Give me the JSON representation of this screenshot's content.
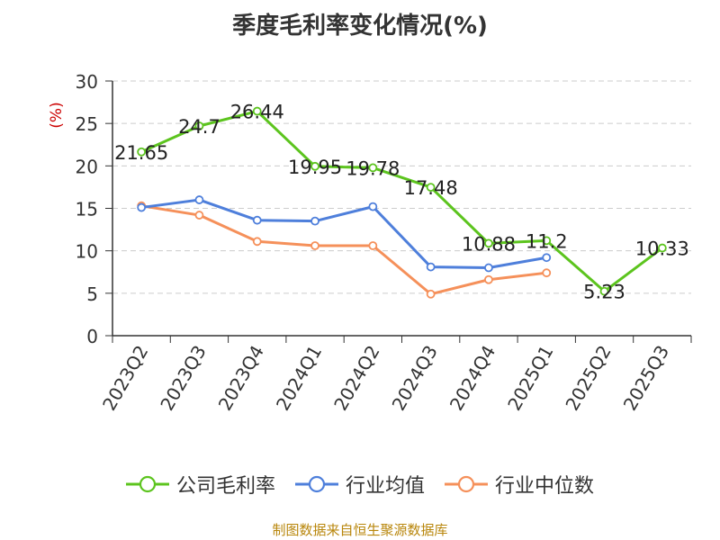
{
  "chart_data": {
    "type": "line",
    "title": "季度毛利率变化情况(%)",
    "ylabel": "(%)",
    "xlabel": "",
    "categories": [
      "2023Q2",
      "2023Q3",
      "2023Q4",
      "2024Q1",
      "2024Q2",
      "2024Q3",
      "2024Q4",
      "2025Q1",
      "2025Q2",
      "2025Q3"
    ],
    "ylim": [
      0,
      30
    ],
    "yticks": [
      0,
      5,
      10,
      15,
      20,
      25,
      30
    ],
    "grid": true,
    "legend_position": "bottom",
    "series": [
      {
        "name": "公司毛利率",
        "color": "#5cc41e",
        "values": [
          21.65,
          24.7,
          26.44,
          19.95,
          19.78,
          17.48,
          10.88,
          11.2,
          5.23,
          10.33
        ],
        "labels": [
          "21.65",
          "24.7",
          "26.44",
          "19.95",
          "19.78",
          "17.48",
          "10.88",
          "11.2",
          "5.23",
          "10.33"
        ]
      },
      {
        "name": "行业均值",
        "color": "#4e7fdb",
        "values": [
          15.1,
          16.0,
          13.6,
          13.5,
          15.2,
          8.1,
          8.0,
          9.2,
          null,
          null
        ]
      },
      {
        "name": "行业中位数",
        "color": "#f5905a",
        "values": [
          15.3,
          14.2,
          11.1,
          10.6,
          10.6,
          4.9,
          6.6,
          7.4,
          null,
          null
        ]
      }
    ]
  },
  "source_note": "制图数据来自恒生聚源数据库"
}
